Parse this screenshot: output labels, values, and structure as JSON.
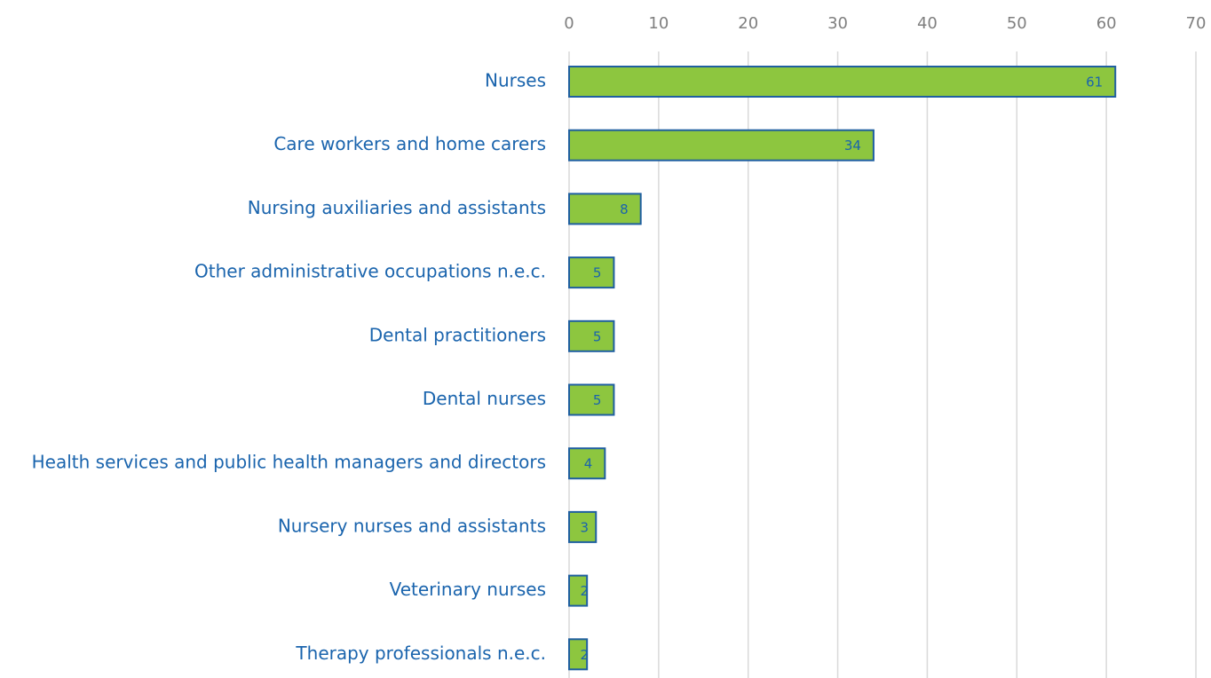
{
  "chart_data": {
    "type": "bar",
    "orientation": "horizontal",
    "categories": [
      "Nurses",
      "Care workers and home carers",
      "Nursing auxiliaries and assistants",
      "Other administrative occupations n.e.c.",
      "Dental practitioners",
      "Dental nurses",
      "Health services and public health managers and directors",
      "Nursery nurses and assistants",
      "Veterinary nurses",
      "Therapy professionals n.e.c."
    ],
    "values": [
      61,
      34,
      8,
      5,
      5,
      5,
      4,
      3,
      2,
      2
    ],
    "color": "#8dc63f",
    "edge_color": "#1f5fa0",
    "xlim": [
      0,
      70
    ],
    "xticks": [
      0,
      10,
      20,
      30,
      40,
      50,
      60,
      70
    ],
    "grid": true,
    "data_labels": true
  }
}
